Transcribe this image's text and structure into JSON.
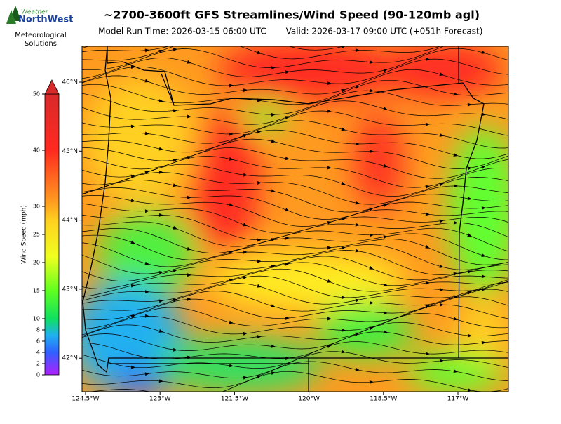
{
  "logo": {
    "line1": "Weather",
    "line2": "NorthWest",
    "org1": "Meteorological",
    "org2": "Solutions"
  },
  "title": "~2700-3600ft GFS Streamlines/Wind Speed (90-120mb agl)",
  "model_run": "Model Run Time: 2026-03-15 06:00 UTC",
  "valid": "Valid: 2026-03-17 09:00 UTC  (+051h Forecast)",
  "colorbar": {
    "label": "Wind Speed (mph)",
    "range": [
      0,
      50
    ],
    "ticks": [
      0,
      2,
      4,
      6,
      8,
      10,
      15,
      20,
      25,
      30,
      40,
      50
    ]
  },
  "map": {
    "lat_ticks": [
      {
        "value": 46,
        "label": "46°N"
      },
      {
        "value": 45,
        "label": "45°N"
      },
      {
        "value": 44,
        "label": "44°N"
      },
      {
        "value": 43,
        "label": "43°N"
      },
      {
        "value": 42,
        "label": "42°N"
      }
    ],
    "lon_ticks": [
      {
        "value": -124.5,
        "label": "124.5°W"
      },
      {
        "value": -123,
        "label": "123°W"
      },
      {
        "value": -121.5,
        "label": "121.5°W"
      },
      {
        "value": -120,
        "label": "120°W"
      },
      {
        "value": -118.5,
        "label": "118.5°W"
      },
      {
        "value": -117,
        "label": "117°W"
      }
    ]
  }
}
